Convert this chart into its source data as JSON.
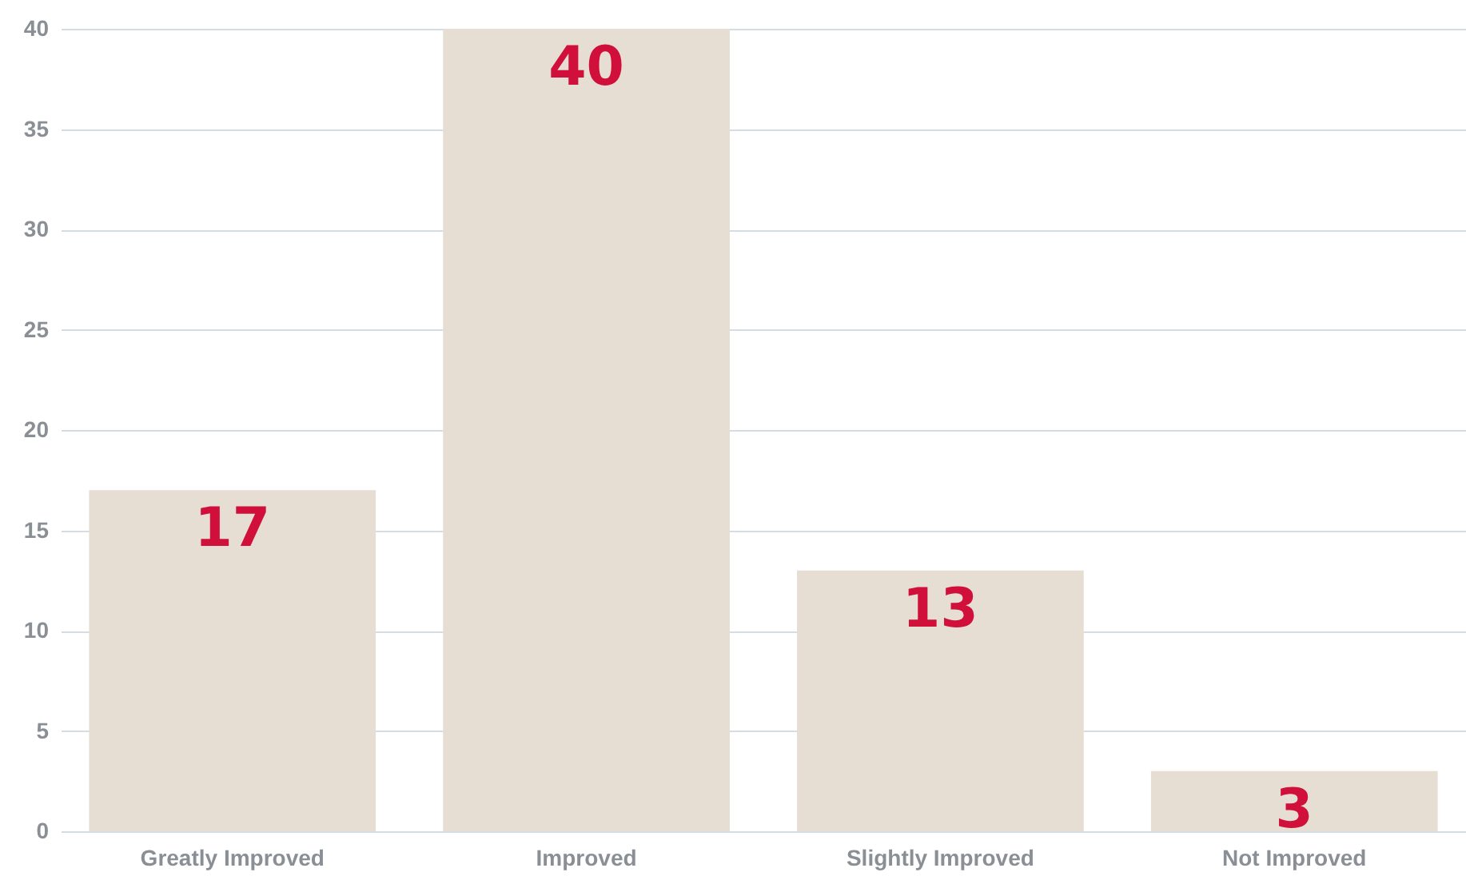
{
  "chart_data": {
    "type": "bar",
    "categories": [
      "Greatly Improved",
      "Improved",
      "Slightly Improved",
      "Not Improved"
    ],
    "values": [
      17,
      40,
      13,
      3
    ],
    "color": "#e6ddd3",
    "ylim": [
      0,
      40
    ],
    "yticks": [
      0,
      5,
      10,
      15,
      20,
      25,
      30,
      35,
      40
    ],
    "grid": "y",
    "data_labels": true
  }
}
